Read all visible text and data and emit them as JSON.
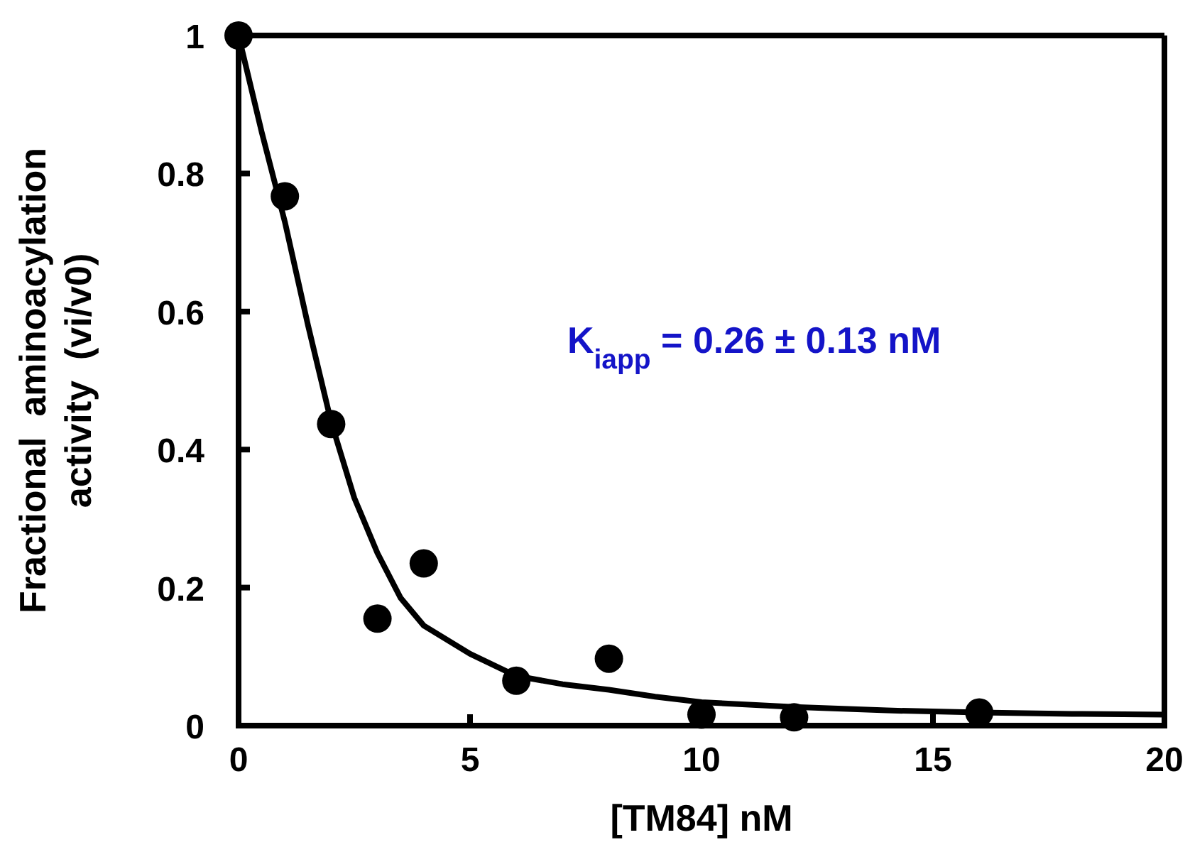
{
  "chart_data": {
    "type": "scatter",
    "xlabel": "[TM84] nM",
    "ylabel": "Fractional  aminoacylation\nactivity  (vi/v0)",
    "annotations": [
      "K$_{iapp}$ = 0.26 ± 0.13 nM"
    ],
    "xlim": [
      0,
      20
    ],
    "ylim": [
      0,
      1
    ],
    "xticks": [
      0,
      5,
      10,
      15,
      20
    ],
    "yticks": [
      0,
      0.2,
      0.4,
      0.6,
      0.8,
      1
    ],
    "marker": "circle",
    "grid": false,
    "legend": false,
    "series": [
      {
        "color": "#000000",
        "x": [
          0,
          1,
          2,
          3,
          4,
          6,
          8,
          10,
          12,
          16
        ],
        "values": [
          1,
          0.767,
          0.437,
          0.155,
          0.235,
          0.065,
          0.097,
          0.016,
          0.012,
          0.019
        ]
      },
      {
        "type": "line",
        "color": "#000000",
        "marker": "none",
        "x": [
          0,
          0.5,
          1,
          1.5,
          2,
          2.5,
          3,
          3.5,
          4,
          5,
          6,
          7,
          8,
          9,
          10,
          12,
          14,
          16,
          18,
          20
        ],
        "values": [
          1,
          0.86,
          0.73,
          0.58,
          0.44,
          0.33,
          0.25,
          0.185,
          0.145,
          0.104,
          0.072,
          0.06,
          0.052,
          0.042,
          0.034,
          0.027,
          0.022,
          0.019,
          0.017,
          0.016
        ]
      }
    ]
  }
}
